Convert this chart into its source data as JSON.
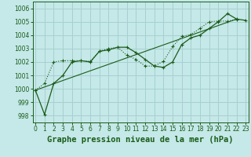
{
  "xlabel": "Graphe pression niveau de la mer (hPa)",
  "bg_color": "#c5e8e8",
  "grid_color": "#a8d0d0",
  "line_color": "#1a5c1a",
  "ylim": [
    997.5,
    1006.5
  ],
  "xlim": [
    -0.3,
    23.3
  ],
  "yticks": [
    998,
    999,
    1000,
    1001,
    1002,
    1003,
    1004,
    1005,
    1006
  ],
  "xticks": [
    0,
    1,
    2,
    3,
    4,
    5,
    6,
    7,
    8,
    9,
    10,
    11,
    12,
    13,
    14,
    15,
    16,
    17,
    18,
    19,
    20,
    21,
    22,
    23
  ],
  "line1_x": [
    0,
    1,
    2,
    3,
    4,
    5,
    6,
    7,
    8,
    9,
    10,
    11,
    12,
    13,
    14,
    15,
    16,
    17,
    18,
    19,
    20,
    21,
    22,
    23
  ],
  "line1_y": [
    999.9,
    998.1,
    1000.4,
    1001.0,
    1002.0,
    1002.1,
    1002.0,
    1002.8,
    1002.9,
    1003.1,
    1003.1,
    1002.7,
    1002.2,
    1001.7,
    1001.6,
    1002.0,
    1003.3,
    1003.8,
    1004.0,
    1004.5,
    1005.0,
    1005.6,
    1005.2,
    1005.1
  ],
  "line2_x": [
    0,
    1,
    2,
    3,
    4,
    5,
    6,
    7,
    8,
    9,
    10,
    11,
    12,
    13,
    14,
    15,
    16,
    17,
    18,
    19,
    20,
    21,
    22
  ],
  "line2_y": [
    999.9,
    1000.4,
    1002.0,
    1002.1,
    1002.1,
    1002.1,
    1002.05,
    1002.8,
    1003.0,
    1003.1,
    1002.5,
    1002.2,
    1001.7,
    1001.7,
    1002.05,
    1003.15,
    1003.9,
    1004.05,
    1004.5,
    1005.0,
    1005.05,
    1005.05,
    1005.15
  ],
  "line3_x": [
    0,
    22
  ],
  "line3_y": [
    999.9,
    1005.2
  ],
  "tick_fontsize": 5.5,
  "label_fontsize": 7.5
}
